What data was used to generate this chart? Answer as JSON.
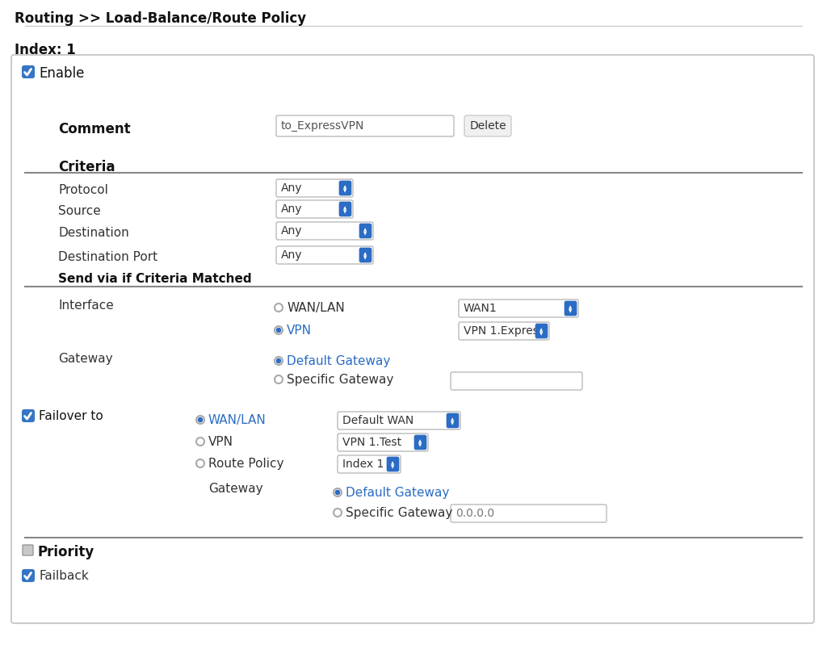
{
  "bg_color": "#ffffff",
  "page_title": "Routing >> Load-Balance/Route Policy",
  "index_label": "Index: 1",
  "comment_label": "Comment",
  "comment_value": "to_ExpressVPN",
  "delete_btn": "Delete",
  "criteria_label": "Criteria",
  "protocol_label": "Protocol",
  "protocol_value": "Any",
  "source_label": "Source",
  "source_value": "Any",
  "destination_label": "Destination",
  "destination_value": "Any",
  "dest_port_label": "Destination Port",
  "dest_port_value": "Any",
  "send_via_label": "Send via if Criteria Matched",
  "interface_label": "Interface",
  "interface_wan_lan": "WAN/LAN",
  "interface_wan1": "WAN1",
  "interface_vpn": "VPN",
  "interface_vpn_value": "VPN 1.Expres",
  "gateway_label": "Gateway",
  "gateway_default": "Default Gateway",
  "gateway_specific": "Specific Gateway",
  "failover_label": "Failover to",
  "failover_wan_lan": "WAN/LAN",
  "failover_wan_value": "Default WAN",
  "failover_vpn": "VPN",
  "failover_vpn_value": "VPN 1.Test",
  "failover_route": "Route Policy",
  "failover_route_value": "Index 1",
  "failover_gateway": "Gateway",
  "failover_gw_default": "Default Gateway",
  "failover_gw_specific": "Specific Gateway",
  "failover_gw_specific_value": "0.0.0.0",
  "priority_label": "Priority",
  "failback_label": "Failback",
  "blue": "#2b6cc4",
  "checkbox_blue": "#3575c5",
  "border_color": "#bbbbbb",
  "text_color": "#333333",
  "label_color": "#111111",
  "sep_color": "#aaaaaa",
  "line_color": "#999999"
}
